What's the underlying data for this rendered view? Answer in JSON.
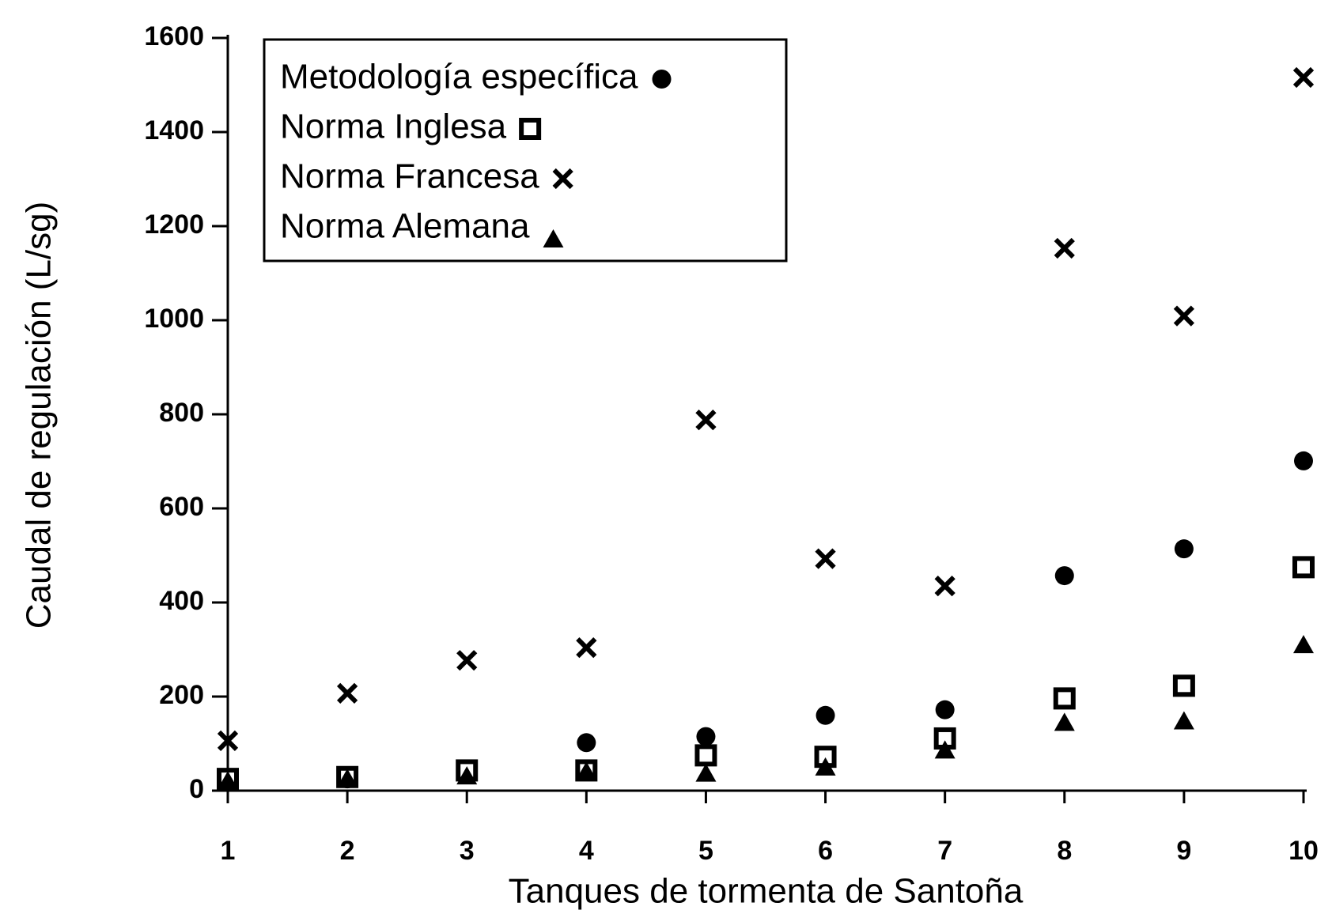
{
  "chart_data": {
    "type": "scatter",
    "x_label": "Tanques de tormenta de Santoña",
    "y_label": "Caudal de regulación (L/sg)",
    "xlim": [
      1,
      10
    ],
    "xticks": [
      1,
      2,
      3,
      4,
      5,
      6,
      7,
      8,
      9,
      10
    ],
    "ylim": [
      0,
      1600
    ],
    "yticks": [
      0,
      200,
      400,
      600,
      800,
      1000,
      1200,
      1400,
      1600
    ],
    "legend": "top-left",
    "series": [
      {
        "name": "Metodología específica",
        "color": "#000000",
        "marker": "circle",
        "x": [
          1,
          2,
          3,
          4,
          5,
          6,
          7,
          8,
          9,
          10
        ],
        "values": [
          20,
          25,
          35,
          102,
          115,
          160,
          172,
          457,
          514,
          701
        ]
      },
      {
        "name": "Norma Inglesa",
        "color": "#000000",
        "marker": "square",
        "x": [
          1,
          2,
          3,
          4,
          5,
          6,
          7,
          8,
          9,
          10
        ],
        "values": [
          25,
          29,
          43,
          43,
          75,
          72,
          111,
          196,
          223,
          475
        ]
      },
      {
        "name": "Norma Francesa",
        "color": "#000000",
        "marker": "cross",
        "x": [
          1,
          2,
          3,
          4,
          5,
          6,
          7,
          8,
          9,
          10
        ],
        "values": [
          106,
          207,
          277,
          304,
          788,
          493,
          435,
          1153,
          1009,
          1516
        ]
      },
      {
        "name": "Norma Alemana",
        "color": "#000000",
        "marker": "triangle",
        "x": [
          1,
          2,
          3,
          4,
          5,
          6,
          7,
          8,
          9,
          10
        ],
        "values": [
          20,
          25,
          30,
          40,
          36,
          49,
          85,
          144,
          147,
          309
        ]
      }
    ]
  }
}
